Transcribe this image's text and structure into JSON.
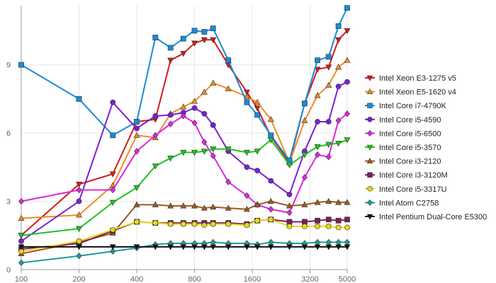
{
  "chart_data": {
    "type": "line",
    "title": "",
    "xlabel": "",
    "ylabel": "",
    "x_scale": "log",
    "xlim": [
      100,
      5000
    ],
    "ylim": [
      0,
      11.6
    ],
    "grid": true,
    "legend_position": "right",
    "xtick_labels": [
      "100",
      "200",
      "400",
      "800",
      "1600",
      "3200",
      "5000"
    ],
    "xticks": [
      100,
      200,
      400,
      800,
      1600,
      3200,
      5000
    ],
    "yticks": [
      0,
      3,
      6,
      9
    ],
    "ytick_labels": [
      "0",
      "3",
      "6",
      "9"
    ],
    "x": [
      100,
      200,
      300,
      400,
      500,
      600,
      700,
      800,
      900,
      1000,
      1200,
      1500,
      1700,
      2000,
      2500,
      3000,
      3500,
      4000,
      4500,
      5000
    ],
    "series": [
      {
        "name": "Intel Xeon E3-1275 v5",
        "color": "#d31a1a",
        "marker": "triangle-down",
        "values": [
          1.5,
          3.75,
          4.2,
          6.5,
          6.6,
          9.2,
          9.5,
          9.95,
          10.1,
          10.1,
          9.0,
          7.8,
          7.1,
          5.85,
          4.7,
          7.3,
          8.8,
          8.9,
          10.1,
          10.5
        ]
      },
      {
        "name": "Intel Xeon E5-1620 v4",
        "color": "#f08a2a",
        "marker": "triangle-up",
        "values": [
          2.25,
          2.4,
          3.7,
          5.9,
          5.8,
          6.85,
          7.15,
          7.4,
          7.8,
          8.2,
          7.95,
          7.6,
          7.35,
          6.6,
          4.7,
          6.55,
          7.65,
          8.1,
          8.9,
          9.2
        ]
      },
      {
        "name": "Intel Core i7-4790K",
        "color": "#1a8bd6",
        "marker": "square",
        "values": [
          9.0,
          7.5,
          5.9,
          6.5,
          10.2,
          9.75,
          10.15,
          10.5,
          10.45,
          10.6,
          9.2,
          7.35,
          6.8,
          5.9,
          4.8,
          7.3,
          9.2,
          9.35,
          10.7,
          11.5
        ]
      },
      {
        "name": "Intel Core i5-4590",
        "color": "#7b1fd6",
        "marker": "circle",
        "values": [
          1.25,
          3.0,
          7.35,
          6.2,
          6.75,
          6.8,
          6.9,
          7.1,
          6.85,
          6.35,
          5.2,
          4.5,
          4.35,
          3.9,
          3.3,
          5.2,
          6.5,
          6.5,
          8.05,
          8.25
        ]
      },
      {
        "name": "Intel Core i5-6500",
        "color": "#de27de",
        "marker": "diamond",
        "values": [
          3.0,
          3.5,
          3.5,
          5.2,
          5.9,
          6.4,
          6.75,
          6.45,
          5.6,
          5.0,
          3.85,
          3.25,
          2.85,
          2.65,
          2.5,
          4.05,
          5.05,
          4.95,
          6.55,
          6.85
        ]
      },
      {
        "name": "Intel Core i5-3570",
        "color": "#1ec41e",
        "marker": "triangle-down",
        "values": [
          1.5,
          1.8,
          2.95,
          3.6,
          4.55,
          4.9,
          5.15,
          5.15,
          5.2,
          5.3,
          5.3,
          5.15,
          5.2,
          5.7,
          4.6,
          5.05,
          5.4,
          5.5,
          5.55,
          5.7
        ]
      },
      {
        "name": "Intel Core i3-2120",
        "color": "#9c5a1f",
        "marker": "triangle-up",
        "values": [
          0.7,
          1.2,
          1.6,
          2.85,
          2.85,
          2.8,
          2.8,
          2.8,
          2.7,
          2.75,
          2.7,
          2.65,
          2.85,
          3.0,
          2.8,
          2.85,
          2.95,
          3.0,
          2.95,
          2.95
        ]
      },
      {
        "name": "Intel Core i3-3120M",
        "color": "#7a1f5c",
        "marker": "square",
        "values": [
          0.9,
          1.15,
          1.7,
          2.1,
          2.05,
          2.05,
          2.05,
          2.05,
          2.05,
          2.05,
          2.05,
          2.0,
          2.15,
          2.2,
          2.1,
          2.1,
          2.15,
          2.2,
          2.15,
          2.2
        ]
      },
      {
        "name": "Intel Core i5-3317U",
        "color": "#e8d81a",
        "marker": "circle",
        "values": [
          0.8,
          1.25,
          1.75,
          2.1,
          2.05,
          2.0,
          2.0,
          2.0,
          1.95,
          2.0,
          2.0,
          1.95,
          2.15,
          2.2,
          1.9,
          1.9,
          1.9,
          1.9,
          1.85,
          1.85
        ]
      },
      {
        "name": "Intel Atom C2758",
        "color": "#1a9d9d",
        "marker": "diamond",
        "values": [
          0.3,
          0.6,
          0.8,
          0.95,
          1.1,
          1.15,
          1.15,
          1.15,
          1.15,
          1.2,
          1.15,
          1.15,
          1.1,
          1.2,
          1.15,
          1.15,
          1.2,
          1.2,
          1.2,
          1.2
        ]
      },
      {
        "name": "Intel Pentium Dual-Core E5300",
        "color": "#111111",
        "marker": "triangle-down",
        "values": [
          1.0,
          1.0,
          1.0,
          1.0,
          1.0,
          1.0,
          1.0,
          1.0,
          1.0,
          1.0,
          1.0,
          1.0,
          1.0,
          1.0,
          1.0,
          1.0,
          1.0,
          1.0,
          1.0,
          1.0
        ]
      }
    ]
  }
}
